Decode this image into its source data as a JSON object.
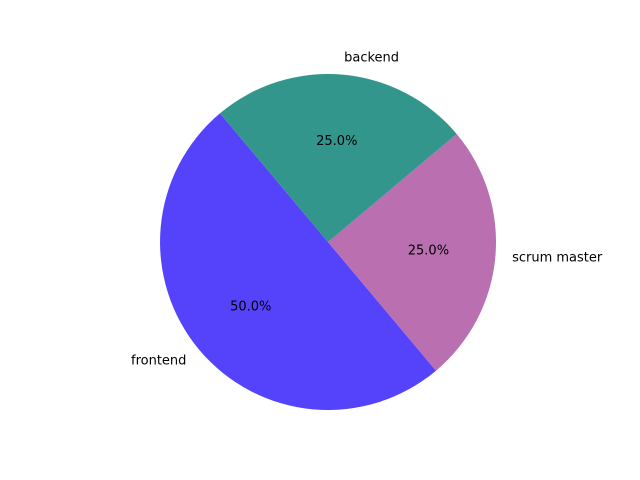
{
  "chart_data": {
    "type": "pie",
    "title": "",
    "start_angle_deg": 130,
    "direction": "counterclockwise",
    "slices": [
      {
        "label": "frontend",
        "value": 50.0,
        "pct_label": "50.0%",
        "color": "#5543fb"
      },
      {
        "label": "scrum master",
        "value": 25.0,
        "pct_label": "25.0%",
        "color": "#ba6fb1"
      },
      {
        "label": "backend",
        "value": 25.0,
        "pct_label": "25.0%",
        "color": "#33968c"
      }
    ]
  }
}
